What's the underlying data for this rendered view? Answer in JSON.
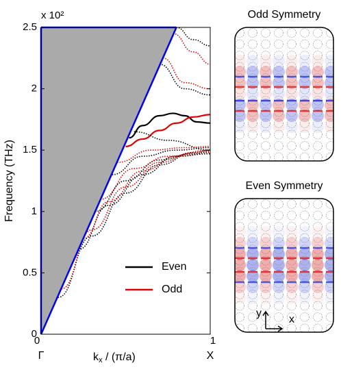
{
  "chart_data": {
    "type": "line",
    "y_label": "Frequency (THz)",
    "multiplier": "x 10²",
    "x_label": "k",
    "x_label_sub": "x",
    "x_label_rest": " / (π/a)",
    "x_point_labels": [
      "Γ",
      "X"
    ],
    "xlim": [
      0,
      1
    ],
    "xticks": [
      0,
      1
    ],
    "ylim": [
      0,
      2.5
    ],
    "yticks": [
      0,
      0.5,
      1,
      1.5,
      2,
      2.5
    ],
    "light_line": {
      "color": "#0000ff",
      "fill": "#aaaaaa",
      "x": [
        0,
        0.8
      ],
      "values": [
        0,
        2.5
      ]
    },
    "series": [
      {
        "name": "Even",
        "color": "#000000",
        "x": [
          0.52,
          0.6,
          0.7,
          0.78,
          0.85,
          0.92,
          1
        ],
        "values": [
          1.6,
          1.7,
          1.78,
          1.8,
          1.78,
          1.73,
          1.72
        ]
      },
      {
        "name": "Odd",
        "color": "#e00000",
        "x": [
          0.5,
          0.6,
          0.7,
          0.8,
          0.9,
          1
        ],
        "values": [
          1.53,
          1.59,
          1.66,
          1.72,
          1.77,
          1.79
        ]
      },
      {
        "color": "#000000",
        "dotted": true,
        "x": [
          0.1,
          0.3,
          0.5,
          0.7,
          0.9,
          1
        ],
        "values": [
          0.3,
          0.8,
          1.15,
          1.38,
          1.48,
          1.5
        ]
      },
      {
        "color": "#e00000",
        "dotted": true,
        "x": [
          0.12,
          0.3,
          0.5,
          0.7,
          0.9,
          1
        ],
        "values": [
          0.37,
          0.85,
          1.2,
          1.4,
          1.48,
          1.5
        ]
      },
      {
        "color": "#000000",
        "dotted": true,
        "x": [
          0.22,
          0.4,
          0.6,
          0.8,
          1
        ],
        "values": [
          0.69,
          1.05,
          1.3,
          1.45,
          1.47
        ]
      },
      {
        "color": "#e00000",
        "dotted": true,
        "x": [
          0.25,
          0.4,
          0.6,
          0.8,
          1
        ],
        "values": [
          0.78,
          1.08,
          1.33,
          1.45,
          1.48
        ]
      },
      {
        "color": "#000000",
        "dotted": true,
        "x": [
          0.32,
          0.5,
          0.7,
          0.9,
          1
        ],
        "values": [
          1.0,
          1.25,
          1.42,
          1.47,
          1.49
        ]
      },
      {
        "color": "#e00000",
        "dotted": true,
        "x": [
          0.35,
          0.55,
          0.75,
          1
        ],
        "values": [
          1.1,
          1.35,
          1.45,
          1.5
        ]
      },
      {
        "color": "#000000",
        "dotted": true,
        "x": [
          0.42,
          0.6,
          0.8,
          1
        ],
        "values": [
          1.3,
          1.45,
          1.5,
          1.52
        ]
      },
      {
        "color": "#e00000",
        "dotted": true,
        "x": [
          0.45,
          0.65,
          0.85,
          1
        ],
        "values": [
          1.4,
          1.5,
          1.52,
          1.53
        ]
      },
      {
        "color": "#000000",
        "dotted": true,
        "x": [
          0.55,
          0.75,
          1
        ],
        "values": [
          1.65,
          1.58,
          1.5
        ]
      },
      {
        "color": "#000000",
        "dotted": true,
        "x": [
          0.7,
          0.85,
          1
        ],
        "values": [
          2.2,
          2.0,
          1.95
        ]
      },
      {
        "color": "#e00000",
        "dotted": true,
        "x": [
          0.72,
          0.85,
          1
        ],
        "values": [
          2.25,
          2.05,
          2.0
        ]
      },
      {
        "color": "#e00000",
        "dotted": true,
        "x": [
          0.78,
          0.9,
          1
        ],
        "values": [
          2.45,
          2.3,
          2.2
        ]
      },
      {
        "color": "#000000",
        "dotted": true,
        "x": [
          0.8,
          0.9,
          1
        ],
        "values": [
          2.5,
          2.4,
          2.35
        ]
      }
    ]
  },
  "panels": [
    {
      "title": "Odd Symmetry"
    },
    {
      "title": "Even Symmetry",
      "axis_y": "y",
      "axis_x": "x"
    }
  ]
}
